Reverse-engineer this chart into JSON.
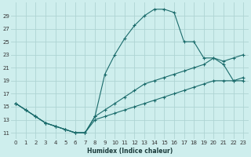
{
  "xlabel": "Humidex (Indice chaleur)",
  "background_color": "#ceeeed",
  "grid_color": "#aed4d3",
  "line_color": "#1a6b6b",
  "xlim": [
    -0.5,
    23.5
  ],
  "ylim": [
    10.0,
    31.0
  ],
  "yticks": [
    11,
    13,
    15,
    17,
    19,
    21,
    23,
    25,
    27,
    29
  ],
  "xticks": [
    0,
    1,
    2,
    3,
    4,
    5,
    6,
    7,
    8,
    9,
    10,
    11,
    12,
    13,
    14,
    15,
    16,
    17,
    18,
    19,
    20,
    21,
    22,
    23
  ],
  "line1_x": [
    0,
    1,
    2,
    3,
    4,
    5,
    6,
    7,
    8,
    9,
    10,
    11,
    12,
    13,
    14,
    15,
    16,
    17,
    18,
    19,
    20,
    21,
    22,
    23
  ],
  "line1_y": [
    15.5,
    14.5,
    13.5,
    12.5,
    12.0,
    11.5,
    11.0,
    11.0,
    13.5,
    20.0,
    23.0,
    25.5,
    27.5,
    29.0,
    30.0,
    30.0,
    29.5,
    25.0,
    25.0,
    22.5,
    22.5,
    21.5,
    19.0,
    19.0
  ],
  "line2_x": [
    0,
    1,
    2,
    3,
    4,
    5,
    6,
    7,
    8,
    9,
    10,
    11,
    12,
    13,
    14,
    15,
    16,
    17,
    18,
    19,
    20,
    21,
    22,
    23
  ],
  "line2_y": [
    15.5,
    14.5,
    13.5,
    12.5,
    12.0,
    11.5,
    11.0,
    11.0,
    13.5,
    14.5,
    15.5,
    16.5,
    17.5,
    18.5,
    19.0,
    19.5,
    20.0,
    20.5,
    21.0,
    21.5,
    22.5,
    22.0,
    22.5,
    23.0
  ],
  "line3_x": [
    0,
    1,
    2,
    3,
    4,
    5,
    6,
    7,
    8,
    9,
    10,
    11,
    12,
    13,
    14,
    15,
    16,
    17,
    18,
    19,
    20,
    21,
    22,
    23
  ],
  "line3_y": [
    15.5,
    14.5,
    13.5,
    12.5,
    12.0,
    11.5,
    11.0,
    11.0,
    13.0,
    13.5,
    14.0,
    14.5,
    15.0,
    15.5,
    16.0,
    16.5,
    17.0,
    17.5,
    18.0,
    18.5,
    19.0,
    19.0,
    19.0,
    19.5
  ]
}
